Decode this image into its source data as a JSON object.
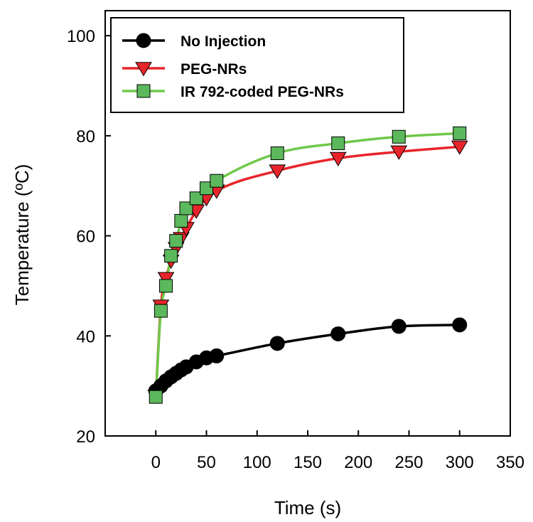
{
  "chart_data": {
    "type": "line",
    "xlabel": "Time (s)",
    "ylabel": "Temperature (ºC)",
    "xlim": [
      -50,
      350
    ],
    "ylim": [
      20,
      105
    ],
    "xticks": [
      0,
      50,
      100,
      150,
      200,
      250,
      300,
      350
    ],
    "yticks": [
      20,
      40,
      60,
      80,
      100
    ],
    "grid": false,
    "legend_position": "top-left",
    "series": [
      {
        "name": "No Injection",
        "marker": "circle",
        "color": "#000000",
        "line_color": "#000000",
        "x": [
          0,
          5,
          10,
          15,
          20,
          25,
          30,
          40,
          50,
          60,
          120,
          180,
          240,
          300
        ],
        "y": [
          29.0,
          30.0,
          31.0,
          31.8,
          32.5,
          33.2,
          33.8,
          34.8,
          35.6,
          36.0,
          38.5,
          40.4,
          41.9,
          42.2
        ]
      },
      {
        "name": "PEG-NRs",
        "marker": "triangle-down",
        "color": "#e8242b",
        "line_color": "#e8242b",
        "x": [
          0,
          5,
          10,
          15,
          20,
          25,
          30,
          40,
          50,
          60,
          120,
          180,
          240,
          300
        ],
        "y": [
          28.0,
          46.0,
          51.5,
          55.0,
          57.5,
          59.5,
          61.5,
          65.0,
          67.5,
          69.0,
          73.0,
          75.5,
          76.8,
          77.8
        ]
      },
      {
        "name": "IR 792-coded PEG-NRs",
        "marker": "square",
        "color": "#5cb85c",
        "line_color": "#6fc84a",
        "x": [
          0,
          5,
          10,
          15,
          20,
          25,
          30,
          40,
          50,
          60,
          120,
          180,
          240,
          300
        ],
        "y": [
          27.8,
          45.0,
          50.0,
          56.0,
          59.0,
          63.0,
          65.5,
          67.5,
          69.5,
          71.0,
          76.5,
          78.5,
          79.8,
          80.5
        ]
      }
    ]
  }
}
